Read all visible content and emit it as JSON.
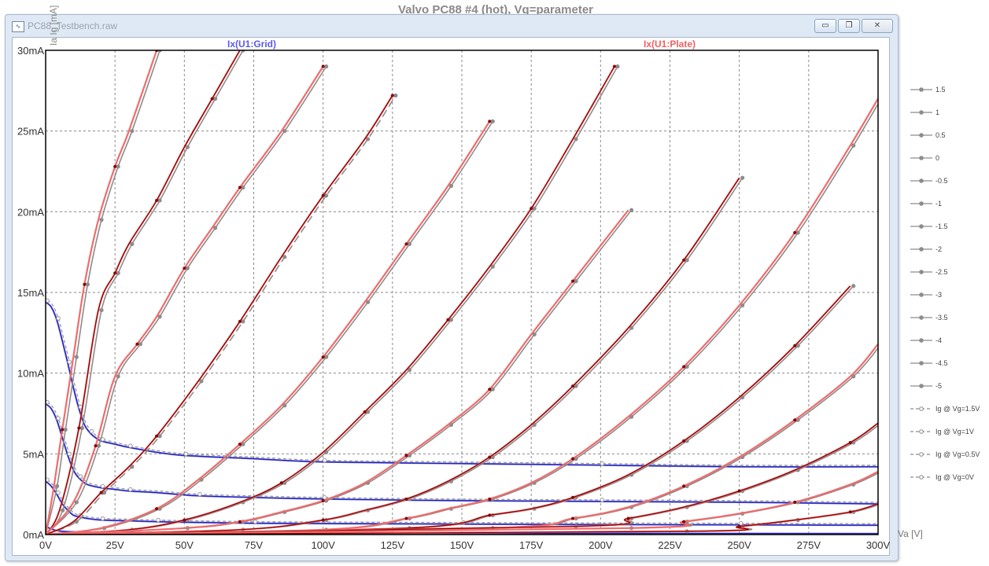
{
  "window": {
    "title": "PC88_Testbench.raw",
    "icon": "waveform-icon",
    "buttons": {
      "minimize": "▭",
      "restore": "❐",
      "close": "✕"
    }
  },
  "chart_data": {
    "type": "line",
    "title": "Valvo PC88 #4 (hot), Vg=parameter",
    "xlabel": "Va [V]",
    "ylabel": "Ia Ig [mA]",
    "xlim": [
      0,
      300
    ],
    "ylim": [
      0,
      30
    ],
    "grid": true,
    "x_ticks": [
      "0V",
      "25V",
      "50V",
      "75V",
      "100V",
      "125V",
      "150V",
      "175V",
      "200V",
      "225V",
      "250V",
      "275V",
      "300V"
    ],
    "y_ticks": [
      "0mA",
      "5mA",
      "10mA",
      "15mA",
      "20mA",
      "25mA",
      "30mA"
    ],
    "trace_labels": {
      "grid": "Ix(U1:Grid)",
      "plate": "Ix(U1:Plate)"
    },
    "colors": {
      "plate_model": "#f06b6b",
      "plate_model_dark": "#8b0000",
      "plate_measured": "#8c8c8c",
      "grid_model": "#6b6bf0",
      "grid_model_dark": "#1a1a9c",
      "grid_measured": "#9a9a9a"
    },
    "legend": {
      "placement": "right",
      "items": [
        "1.5",
        "1",
        "0.5",
        "0",
        "-0.5",
        "-1",
        "-1.5",
        "-2",
        "-2.5",
        "-3",
        "-3.5",
        "-4",
        "-4.5",
        "-5",
        "Ig @ Vg=1.5V",
        "Ig @ Vg=1V",
        "Ig @ Vg=0.5V",
        "Ig @ Vg=0V"
      ]
    },
    "plate_series": [
      {
        "name": "1.5",
        "x": [
          0,
          3,
          6,
          10,
          14,
          19,
          25,
          30,
          40
        ],
        "y": [
          0,
          3,
          6.5,
          11,
          15.5,
          19.5,
          22.8,
          25,
          30
        ]
      },
      {
        "name": "1",
        "x": [
          0,
          5,
          12,
          19,
          25,
          30,
          40,
          50,
          60,
          70
        ],
        "y": [
          0,
          1.5,
          6.6,
          13.9,
          16.2,
          18,
          20.7,
          24,
          27,
          30
        ]
      },
      {
        "name": "0.5",
        "x": [
          0,
          10,
          18,
          25,
          33,
          40,
          50,
          60,
          70,
          85,
          100
        ],
        "y": [
          0,
          2,
          5.5,
          9.8,
          11.8,
          13.5,
          16.5,
          19,
          21.5,
          25,
          29
        ]
      },
      {
        "name": "0",
        "x": [
          0,
          10,
          20,
          30,
          40,
          55,
          70,
          85,
          100,
          115,
          125
        ],
        "y": [
          0,
          0.8,
          2.6,
          4.2,
          6.1,
          9.5,
          13.2,
          17.2,
          21,
          24.5,
          27.2
        ]
      },
      {
        "name": "-0.5",
        "x": [
          0,
          20,
          40,
          55,
          70,
          85,
          100,
          115,
          130,
          145,
          160
        ],
        "y": [
          0,
          0.4,
          1.6,
          3.4,
          5.6,
          8,
          11,
          14.4,
          18,
          21.6,
          25.6
        ]
      },
      {
        "name": "-1",
        "x": [
          0,
          30,
          50,
          70,
          85,
          100,
          115,
          130,
          145,
          160,
          175,
          190,
          205
        ],
        "y": [
          0,
          0.3,
          0.9,
          2,
          3.2,
          5.1,
          7.6,
          10.2,
          13.3,
          16.6,
          20.2,
          24.5,
          29
        ]
      },
      {
        "name": "-1.5",
        "x": [
          0,
          50,
          70,
          85,
          100,
          115,
          130,
          145,
          160,
          175,
          190,
          210
        ],
        "y": [
          0,
          0.4,
          0.8,
          1.4,
          2.1,
          3.2,
          4.9,
          6.8,
          9,
          12.4,
          15.7,
          20.1
        ]
      },
      {
        "name": "-2",
        "x": [
          0,
          70,
          100,
          115,
          130,
          145,
          160,
          175,
          190,
          210,
          230,
          250
        ],
        "y": [
          0,
          0.3,
          0.9,
          1.5,
          2.2,
          3.3,
          4.8,
          6.8,
          9.2,
          12.8,
          17,
          22.1
        ]
      },
      {
        "name": "-2.5",
        "x": [
          0,
          100,
          130,
          145,
          160,
          175,
          190,
          210,
          230,
          250,
          270,
          290,
          305
        ],
        "y": [
          0,
          0.3,
          1,
          1.6,
          2.2,
          3.2,
          4.7,
          7.3,
          10.4,
          14.2,
          18.7,
          24.1,
          28.5
        ]
      },
      {
        "name": "-3",
        "x": [
          0,
          130,
          160,
          175,
          190,
          210,
          230,
          250,
          270,
          290
        ],
        "y": [
          0,
          0.4,
          1.2,
          1.6,
          2.3,
          3.7,
          5.8,
          8.5,
          11.7,
          15.4
        ]
      },
      {
        "name": "-3.5",
        "x": [
          0,
          160,
          190,
          210,
          230,
          250,
          270,
          290,
          300
        ],
        "y": [
          0,
          0.4,
          1,
          1.7,
          3,
          4.8,
          7.1,
          9.8,
          11.8
        ]
      },
      {
        "name": "-4",
        "x": [
          0,
          190,
          210,
          230,
          250,
          270,
          290,
          300
        ],
        "y": [
          0,
          0.5,
          1,
          1.7,
          2.7,
          4,
          5.7,
          6.9
        ]
      },
      {
        "name": "-4.5",
        "x": [
          0,
          210,
          230,
          250,
          270,
          290,
          300
        ],
        "y": [
          0,
          0.4,
          0.8,
          1.3,
          2,
          3.1,
          3.9
        ]
      },
      {
        "name": "-5",
        "x": [
          0,
          230,
          250,
          270,
          290,
          300
        ],
        "y": [
          0,
          0.2,
          0.5,
          0.9,
          1.4,
          1.9
        ]
      }
    ],
    "grid_series": [
      {
        "name": "Ig @ Vg=1.5V",
        "x": [
          0,
          2,
          4,
          6,
          8,
          10,
          12,
          14,
          16,
          18,
          20,
          25,
          30,
          40,
          50,
          75,
          100,
          150,
          200,
          250,
          300
        ],
        "y": [
          14.4,
          14.1,
          13.3,
          12,
          10.6,
          9.1,
          7.8,
          6.8,
          6.3,
          6,
          5.8,
          5.6,
          5.4,
          5.1,
          4.9,
          4.7,
          4.5,
          4.4,
          4.3,
          4.2,
          4.2
        ]
      },
      {
        "name": "Ig @ Vg=1V",
        "x": [
          0,
          2,
          4,
          6,
          8,
          10,
          12,
          15,
          20,
          25,
          30,
          40,
          55,
          75,
          100,
          150,
          200,
          250,
          300
        ],
        "y": [
          8.1,
          7.8,
          7.1,
          6,
          4.9,
          4,
          3.5,
          3.1,
          2.9,
          2.8,
          2.7,
          2.6,
          2.4,
          2.3,
          2.2,
          2.1,
          2.05,
          2,
          1.9
        ]
      },
      {
        "name": "Ig @ Vg=0.5V",
        "x": [
          0,
          2,
          4,
          6,
          8,
          10,
          12,
          15,
          20,
          30,
          40,
          55,
          75,
          100,
          150,
          200,
          250,
          300
        ],
        "y": [
          3.3,
          3,
          2.5,
          1.9,
          1.5,
          1.2,
          1.1,
          1,
          0.9,
          0.85,
          0.8,
          0.75,
          0.7,
          0.68,
          0.65,
          0.62,
          0.6,
          0.58
        ]
      },
      {
        "name": "Ig @ Vg=0V",
        "x": [
          0,
          2,
          4,
          6,
          10,
          20,
          40,
          70,
          100,
          150,
          200,
          300
        ],
        "y": [
          0.5,
          0.35,
          0.25,
          0.2,
          0.17,
          0.14,
          0.12,
          0.1,
          0.09,
          0.08,
          0.07,
          0.06
        ]
      }
    ]
  }
}
